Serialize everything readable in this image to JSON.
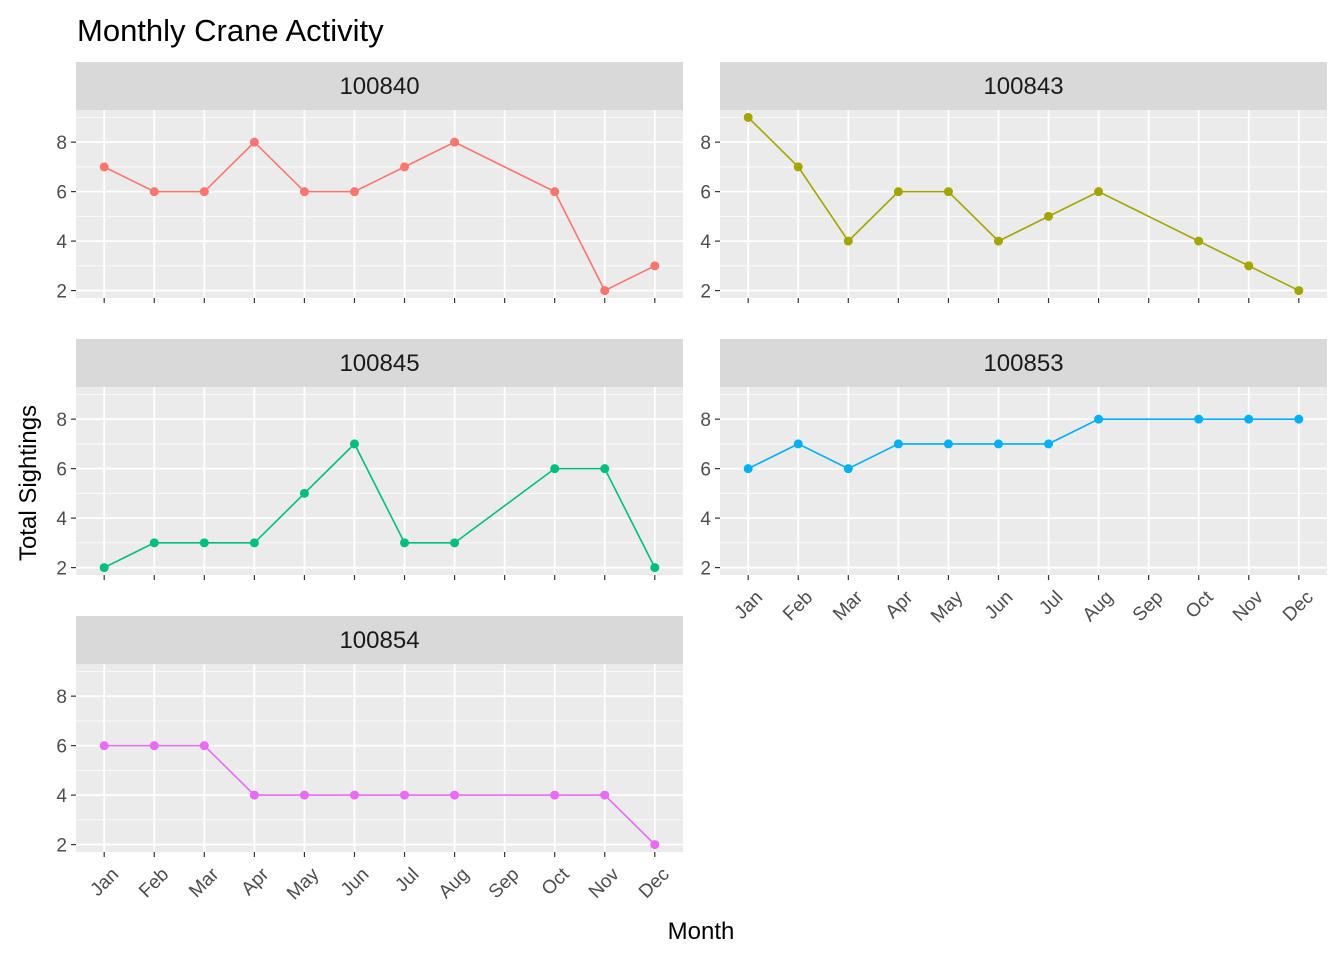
{
  "chart_data": {
    "type": "line",
    "title": "Monthly Crane Activity",
    "xlabel": "Month",
    "ylabel": "Total Sightings",
    "categories": [
      "Jan",
      "Feb",
      "Mar",
      "Apr",
      "May",
      "Jun",
      "Jul",
      "Aug",
      "Sep",
      "Oct",
      "Nov",
      "Dec"
    ],
    "y_ticks": [
      2,
      4,
      6,
      8
    ],
    "ylim": [
      1.7,
      9.3
    ],
    "grid": true,
    "legend": "none",
    "facets": [
      {
        "name": "100840",
        "color": "#F8766D",
        "points": [
          [
            "Jan",
            7
          ],
          [
            "Feb",
            6
          ],
          [
            "Mar",
            6
          ],
          [
            "Apr",
            8
          ],
          [
            "May",
            6
          ],
          [
            "Jun",
            6
          ],
          [
            "Jul",
            7
          ],
          [
            "Aug",
            8
          ],
          [
            "Oct",
            6
          ],
          [
            "Nov",
            2
          ],
          [
            "Dec",
            3
          ]
        ]
      },
      {
        "name": "100843",
        "color": "#A3A500",
        "points": [
          [
            "Jan",
            9
          ],
          [
            "Feb",
            7
          ],
          [
            "Mar",
            4
          ],
          [
            "Apr",
            6
          ],
          [
            "May",
            6
          ],
          [
            "Jun",
            4
          ],
          [
            "Jul",
            5
          ],
          [
            "Aug",
            6
          ],
          [
            "Oct",
            4
          ],
          [
            "Nov",
            3
          ],
          [
            "Dec",
            2
          ]
        ]
      },
      {
        "name": "100845",
        "color": "#00BF7D",
        "points": [
          [
            "Jan",
            2
          ],
          [
            "Feb",
            3
          ],
          [
            "Mar",
            3
          ],
          [
            "Apr",
            3
          ],
          [
            "May",
            5
          ],
          [
            "Jun",
            7
          ],
          [
            "Jul",
            3
          ],
          [
            "Aug",
            3
          ],
          [
            "Oct",
            6
          ],
          [
            "Nov",
            6
          ],
          [
            "Dec",
            2
          ]
        ]
      },
      {
        "name": "100853",
        "color": "#00B0F6",
        "points": [
          [
            "Jan",
            6
          ],
          [
            "Feb",
            7
          ],
          [
            "Mar",
            6
          ],
          [
            "Apr",
            7
          ],
          [
            "May",
            7
          ],
          [
            "Jun",
            7
          ],
          [
            "Jul",
            7
          ],
          [
            "Aug",
            8
          ],
          [
            "Oct",
            8
          ],
          [
            "Nov",
            8
          ],
          [
            "Dec",
            8
          ]
        ]
      },
      {
        "name": "100854",
        "color": "#E76BF3",
        "points": [
          [
            "Jan",
            6
          ],
          [
            "Feb",
            6
          ],
          [
            "Mar",
            6
          ],
          [
            "Apr",
            4
          ],
          [
            "May",
            4
          ],
          [
            "Jun",
            4
          ],
          [
            "Jul",
            4
          ],
          [
            "Aug",
            4
          ],
          [
            "Oct",
            4
          ],
          [
            "Nov",
            4
          ],
          [
            "Dec",
            2
          ]
        ]
      }
    ]
  }
}
